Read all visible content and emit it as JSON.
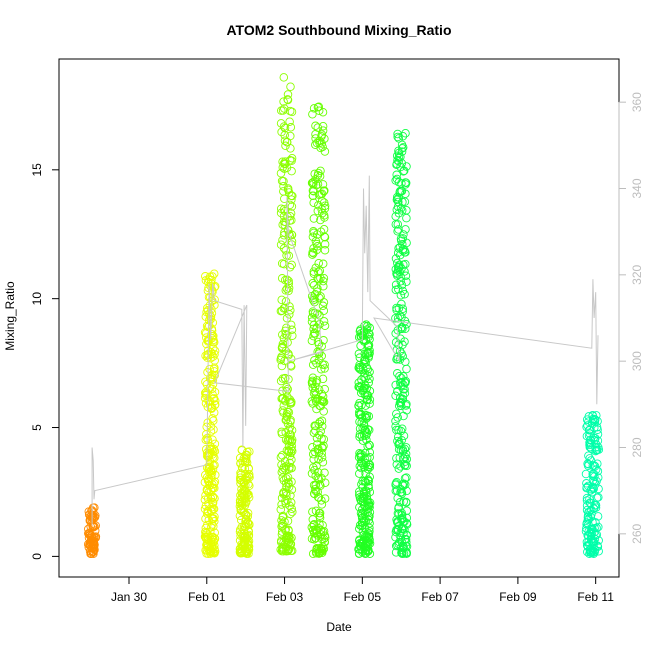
{
  "chart_data": {
    "type": "scatter",
    "title": "ATOM2 Southbound Mixing_Ratio",
    "xlabel": "Date",
    "ylabel": "Mixing_Ratio",
    "y2label": "",
    "x_ticks": [
      "Jan 30",
      "Feb 01",
      "Feb 03",
      "Feb 05",
      "Feb 07",
      "Feb 09",
      "Feb 11"
    ],
    "x_tick_values": [
      0.0,
      2.0,
      4.0,
      6.0,
      8.0,
      10.0,
      12.0
    ],
    "xlim": [
      -1.8,
      12.6
    ],
    "y_ticks": [
      "0",
      "5",
      "10",
      "15"
    ],
    "y_tick_values": [
      0,
      5,
      10,
      15
    ],
    "ylim": [
      -0.8,
      19.3
    ],
    "y2_ticks": [
      "260",
      "280",
      "300",
      "320",
      "340",
      "360"
    ],
    "y2_tick_values": [
      260,
      280,
      300,
      320,
      340,
      360
    ],
    "y2lim": [
      250,
      370
    ],
    "colors": {
      "axis": "#000000",
      "secondary_axis": "#bdbdbd",
      "secondary_line": "#c8c8c8"
    },
    "series": [
      {
        "x_range": [
          -1.05,
          -0.85
        ],
        "y_range": [
          0.1,
          1.9
        ],
        "count": 80,
        "color": "#ff8c00"
      },
      {
        "x_range": [
          1.95,
          2.22
        ],
        "y_range": [
          0.1,
          11.0
        ],
        "count": 260,
        "color": "#e6ff00"
      },
      {
        "x_range": [
          2.85,
          3.1
        ],
        "y_range": [
          0.1,
          4.3
        ],
        "count": 150,
        "color": "#d4ff00"
      },
      {
        "x_range": [
          3.9,
          4.2
        ],
        "y_range": [
          0.2,
          18.7
        ],
        "count": 280,
        "color": "#8cff00"
      },
      {
        "x_range": [
          4.7,
          5.05
        ],
        "y_range": [
          0.1,
          17.5
        ],
        "count": 280,
        "color": "#66ff00"
      },
      {
        "x_range": [
          5.9,
          6.2
        ],
        "y_range": [
          0.1,
          9.0
        ],
        "count": 260,
        "color": "#22ff22"
      },
      {
        "x_range": [
          6.85,
          7.15
        ],
        "y_range": [
          0.1,
          16.5
        ],
        "count": 280,
        "color": "#11ff44"
      },
      {
        "x_range": [
          11.75,
          12.08
        ],
        "y_range": [
          0.1,
          5.5
        ],
        "count": 160,
        "color": "#00ffaa"
      }
    ],
    "secondary_line": {
      "axis": "y2",
      "points": [
        [
          -0.95,
          262
        ],
        [
          -0.95,
          280
        ],
        [
          -0.92,
          277
        ],
        [
          -0.9,
          268
        ],
        [
          -0.88,
          270
        ],
        [
          2.0,
          276
        ],
        [
          2.03,
          295
        ],
        [
          2.06,
          318
        ],
        [
          2.1,
          305
        ],
        [
          2.15,
          318
        ],
        [
          2.2,
          314
        ],
        [
          2.9,
          312
        ],
        [
          2.93,
          280
        ],
        [
          2.96,
          313
        ],
        [
          3.0,
          285
        ],
        [
          3.03,
          313
        ],
        [
          2.2,
          295
        ],
        [
          4.1,
          293
        ],
        [
          4.06,
          338
        ],
        [
          4.1,
          330
        ],
        [
          4.9,
          309
        ],
        [
          4.94,
          302
        ],
        [
          4.1,
          300
        ],
        [
          6.0,
          305
        ],
        [
          6.03,
          340
        ],
        [
          6.06,
          325
        ],
        [
          6.1,
          336
        ],
        [
          6.14,
          316
        ],
        [
          6.18,
          343
        ],
        [
          6.2,
          314
        ],
        [
          6.9,
          308
        ],
        [
          6.95,
          300
        ],
        [
          6.3,
          310
        ],
        [
          11.9,
          303
        ],
        [
          11.93,
          319
        ],
        [
          11.96,
          310
        ],
        [
          12.0,
          316
        ],
        [
          12.03,
          290
        ],
        [
          12.06,
          306
        ]
      ]
    }
  }
}
